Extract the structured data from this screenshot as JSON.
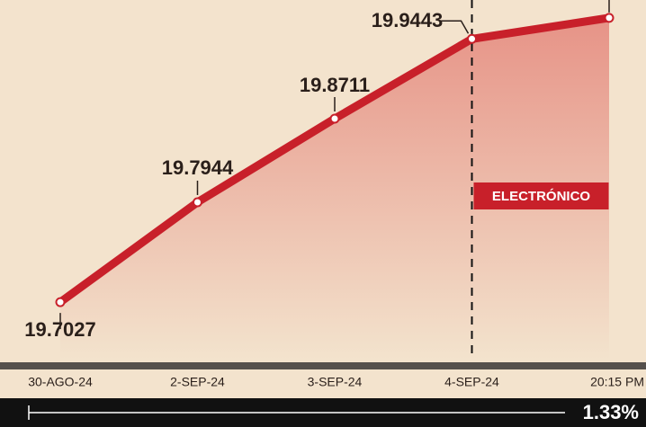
{
  "chart_data": {
    "type": "line",
    "categories": [
      "30-AGO-24",
      "2-SEP-24",
      "3-SEP-24",
      "4-SEP-24",
      "20:15 PM"
    ],
    "values": [
      19.7027,
      19.7944,
      19.8711,
      19.9443,
      19.9636
    ],
    "color": "#c8202a",
    "ylim": [
      19.65,
      19.98
    ],
    "annotation": "ELECTRÓNICO",
    "change": "1.33%"
  }
}
